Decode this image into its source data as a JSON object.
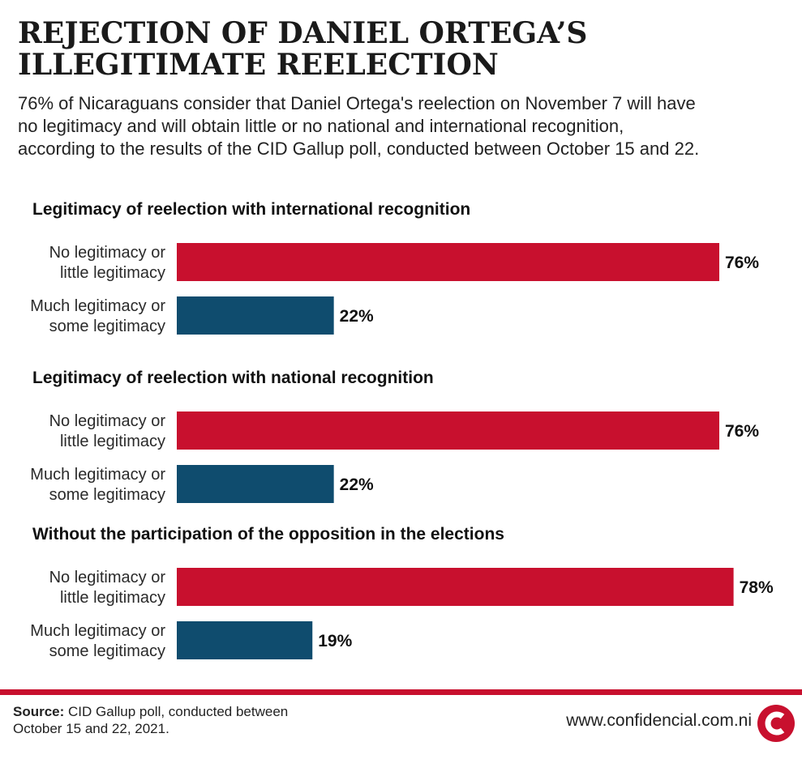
{
  "header": {
    "title_line1": "REJECTION OF DANIEL ORTEGA’S",
    "title_line2": "ILLEGITIMATE REELECTION",
    "subtitle_line1": "76% of Nicaraguans consider that Daniel Ortega's reelection on November 7 will have",
    "subtitle_line2": "no legitimacy and will obtain little or no national and international recognition,",
    "subtitle_line3": "according to the results of the CID Gallup poll, conducted between October 15 and 22."
  },
  "colors": {
    "no_legitimacy": "#c8102e",
    "legitimacy": "#0f4c6e",
    "accent": "#c8102e"
  },
  "chart_data": [
    {
      "type": "bar",
      "title": "Legitimacy of reelection with international recognition",
      "categories": [
        [
          "No legitimacy or",
          "little legitimacy"
        ],
        [
          "Much legitimacy or",
          "some legitimacy"
        ]
      ],
      "values": [
        76,
        22
      ],
      "value_labels": [
        "76%",
        "22%"
      ],
      "xlim": [
        0,
        100
      ]
    },
    {
      "type": "bar",
      "title": "Legitimacy of reelection with national recognition",
      "categories": [
        [
          "No legitimacy or",
          "little legitimacy"
        ],
        [
          "Much legitimacy or",
          "some legitimacy"
        ]
      ],
      "values": [
        76,
        22
      ],
      "value_labels": [
        "76%",
        "22%"
      ],
      "xlim": [
        0,
        100
      ]
    },
    {
      "type": "bar",
      "title": "Without the participation of the opposition in the elections",
      "categories": [
        [
          "No legitimacy or",
          "little legitimacy"
        ],
        [
          "Much legitimacy or",
          "some legitimacy"
        ]
      ],
      "values": [
        78,
        19
      ],
      "value_labels": [
        "78%",
        "19%"
      ],
      "xlim": [
        0,
        100
      ]
    }
  ],
  "footer": {
    "source_label": "Source:",
    "source_text_line1": " CID Gallup poll, conducted between",
    "source_text_line2": "October 15 and 22, 2021.",
    "website": "www.confidencial.com.ni",
    "logo_letter": "C"
  }
}
